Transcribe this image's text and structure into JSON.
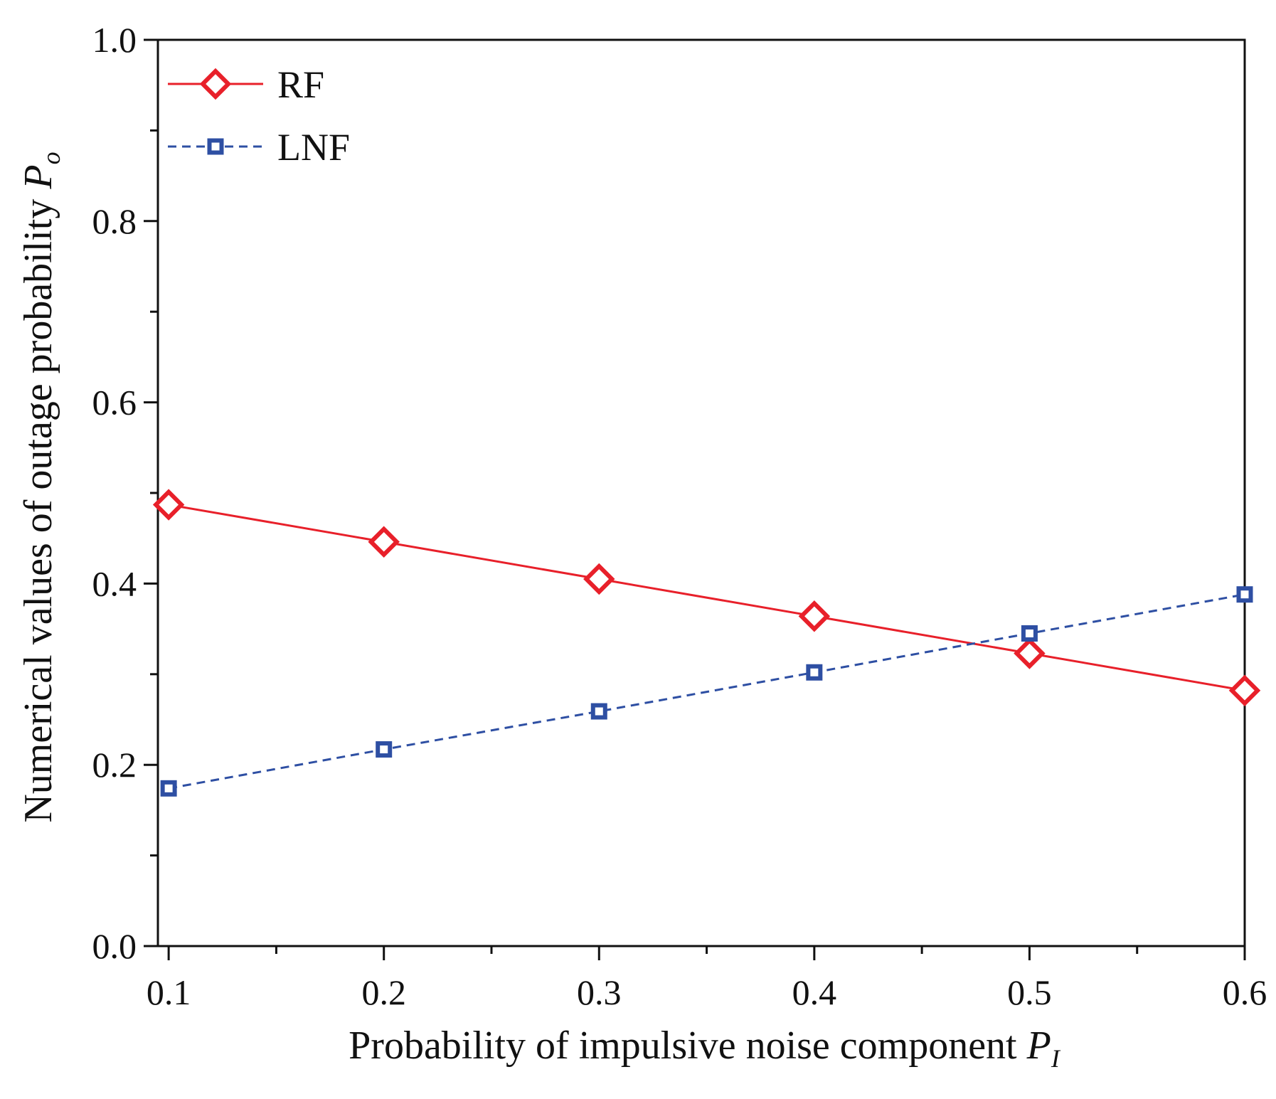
{
  "chart_data": {
    "type": "line",
    "title": "",
    "xlabel": "Probability of impulsive noise component",
    "xlabel_symbol": "P",
    "xlabel_subscript": "I",
    "ylabel": "Numerical values of outage probability",
    "ylabel_symbol": "P",
    "ylabel_subscript": "o",
    "xlim": [
      0.095,
      0.6
    ],
    "ylim": [
      0.0,
      1.0
    ],
    "x_ticks": [
      0.1,
      0.2,
      0.3,
      0.4,
      0.5,
      0.6
    ],
    "x_tick_labels": [
      "0.1",
      "0.2",
      "0.3",
      "0.4",
      "0.5",
      "0.6"
    ],
    "y_ticks": [
      0.0,
      0.2,
      0.4,
      0.6,
      0.8,
      1.0
    ],
    "y_tick_labels": [
      "0.0",
      "0.2",
      "0.4",
      "0.6",
      "0.8",
      "1.0"
    ],
    "x_minor_ticks": [
      0.15,
      0.25,
      0.35,
      0.45,
      0.55
    ],
    "y_minor_ticks": [
      0.1,
      0.3,
      0.5,
      0.7,
      0.9
    ],
    "grid": false,
    "legend_position": "top-left",
    "x": [
      0.1,
      0.2,
      0.3,
      0.4,
      0.5,
      0.6
    ],
    "series": [
      {
        "name": "RF",
        "values": [
          0.487,
          0.446,
          0.405,
          0.364,
          0.323,
          0.282
        ],
        "color": "#e8202a",
        "marker": "diamond",
        "line_style": "solid"
      },
      {
        "name": "LNF",
        "values": [
          0.174,
          0.217,
          0.259,
          0.302,
          0.345,
          0.388
        ],
        "color": "#2e4fa3",
        "marker": "square",
        "line_style": "dashed"
      }
    ]
  }
}
